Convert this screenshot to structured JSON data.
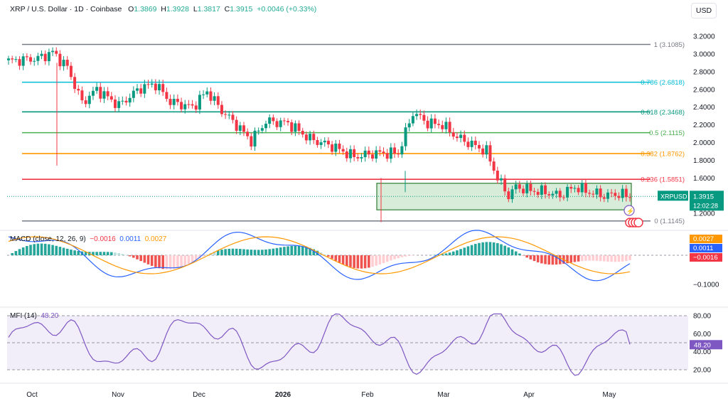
{
  "header": {
    "symbol": "XRP / U.S. Dollar · 1D · Coinbase",
    "open_label": "O",
    "open": "1.3869",
    "high_label": "H",
    "high": "1.3928",
    "low_label": "L",
    "low": "1.3817",
    "close_label": "C",
    "close": "1.3915",
    "change": "+0.0046 (+0.33%)"
  },
  "currency_button": "USD",
  "chart_data": [
    {
      "type": "candlestick",
      "title": "XRP / U.S. Dollar · 1D · Coinbase",
      "price_axis_labels": [
        "3.2000",
        "3.0000",
        "2.8000",
        "2.6000",
        "2.4000",
        "2.2000",
        "2.0000",
        "1.8000",
        "1.6000",
        "1.2000"
      ],
      "ylim": [
        1.05,
        3.42
      ],
      "time_labels": [
        "Oct",
        "Nov",
        "Dec",
        "2026",
        "Feb",
        "Mar",
        "Apr",
        "May"
      ],
      "fibonacci": [
        {
          "label": "1 (3.1085)",
          "value": 3.1085,
          "color": "#787b86"
        },
        {
          "label": "0.786 (2.6818)",
          "value": 2.6818,
          "color": "#00bcd4"
        },
        {
          "label": "0.618 (2.3468)",
          "value": 2.3468,
          "color": "#089981"
        },
        {
          "label": "0.5 (2.1115)",
          "value": 2.1115,
          "color": "#4caf50"
        },
        {
          "label": "0.382 (1.8762)",
          "value": 1.8762,
          "color": "#ff9800"
        },
        {
          "label": "0.236 (1.5851)",
          "value": 1.5851,
          "color": "#f23645"
        },
        {
          "label": "0 (1.1145)",
          "value": 1.1145,
          "color": "#787b86"
        }
      ],
      "range_box": {
        "top": 1.54,
        "bottom": 1.24
      },
      "last_price_label": {
        "symbol": "XRPUSD",
        "price": "1.3915",
        "countdown": "12:02:28",
        "value": 1.3915
      },
      "up_color": "#089981",
      "down_color": "#f23645"
    },
    {
      "type": "line",
      "title": "MACD (close, 12, 26, 9)",
      "values_display": [
        "−0.0016",
        "0.0011",
        "0.0027"
      ],
      "value_colors": [
        "#f23645",
        "#2962ff",
        "#ff9800"
      ],
      "axis_label": "−0.1000",
      "badges": [
        {
          "text": "0.0027",
          "color": "#ff9800"
        },
        {
          "text": "0.0011",
          "color": "#2962ff"
        },
        {
          "text": "−0.0016",
          "color": "#f23645"
        }
      ]
    },
    {
      "type": "line",
      "title": "MFI (14)",
      "value_display": "48.20",
      "value": 48.2,
      "axis_labels": [
        "80.00",
        "60.00",
        "40.00",
        "20.00"
      ],
      "band": [
        20,
        80
      ],
      "line_color": "#7e57c2",
      "badge": "48.20"
    }
  ]
}
